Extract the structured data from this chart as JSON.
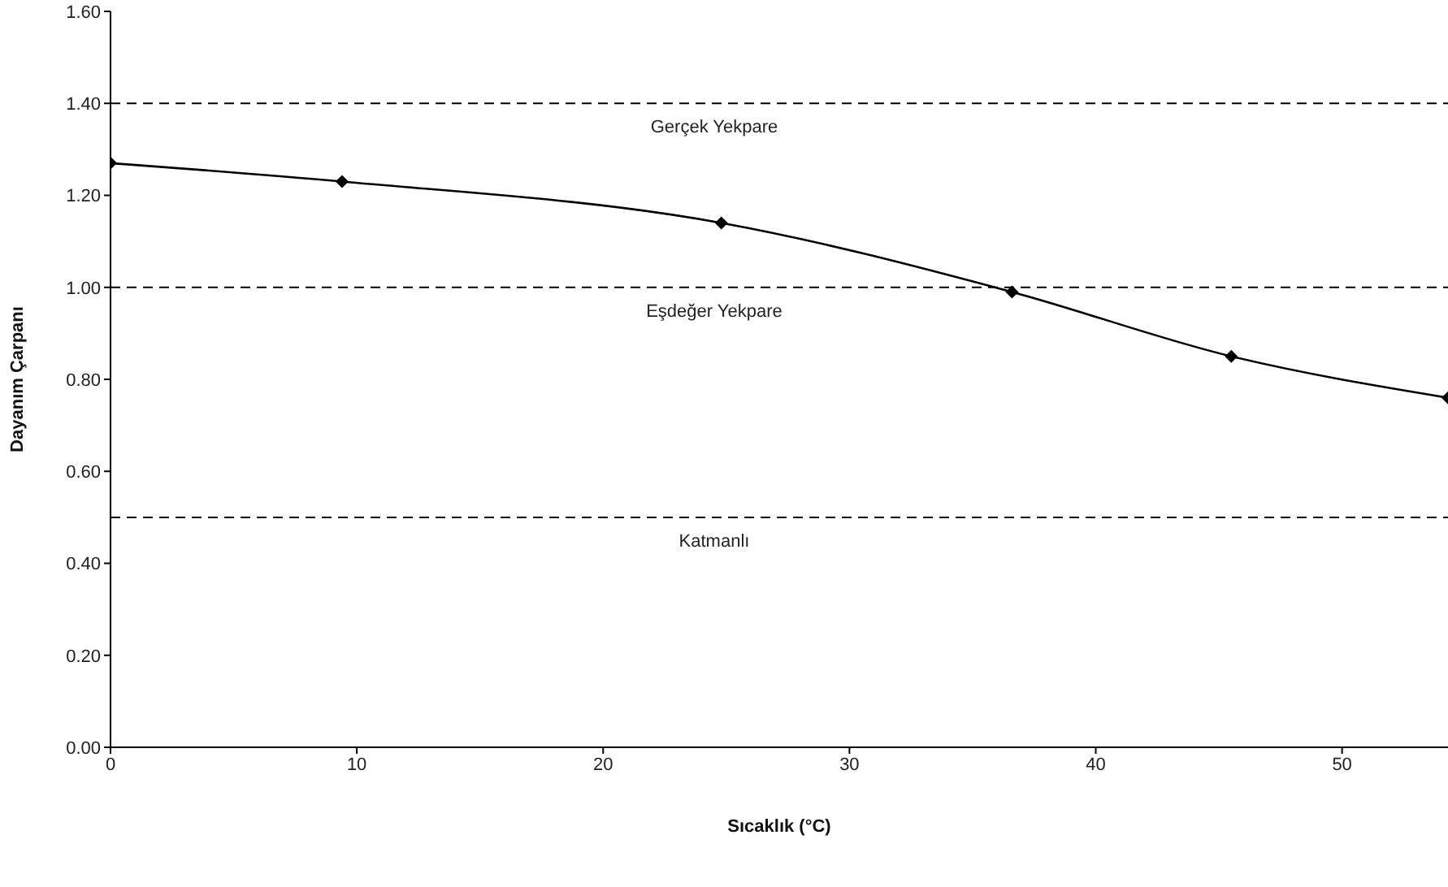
{
  "chart_data": {
    "type": "line",
    "xlabel": "Sıcaklık (°C)",
    "ylabel": "Dayanım Çarpanı",
    "x": [
      0,
      9.4,
      24.8,
      36.6,
      45.5,
      54.3
    ],
    "series": [
      {
        "color": "#000000",
        "values": [
          1.27,
          1.23,
          1.14,
          0.99,
          0.85,
          0.76
        ]
      }
    ],
    "xlim": [
      0,
      54.3
    ],
    "xticks": [
      0,
      10,
      20,
      30,
      40,
      50
    ],
    "ylim": [
      0,
      1.6
    ],
    "yticks": [
      {
        "value": 0,
        "label": "0.00"
      },
      {
        "value": 0.2,
        "label": "0.20"
      },
      {
        "value": 0.4,
        "label": "0.40"
      },
      {
        "value": 0.6,
        "label": "0.60"
      },
      {
        "value": 0.8,
        "label": "0.80"
      },
      {
        "value": 1,
        "label": "1.00"
      },
      {
        "value": 1.2,
        "label": "1.20"
      },
      {
        "value": 1.4,
        "label": "1.40"
      },
      {
        "value": 1.6,
        "label": "1.60"
      }
    ],
    "ref_lines": [
      {
        "axis": "y",
        "value": 1.4,
        "label": "Gerçek Yekpare",
        "color": "#000000",
        "line_style": "dashed"
      },
      {
        "axis": "y",
        "value": 1,
        "label": "Eşdeğer Yekpare",
        "color": "#000000",
        "line_style": "dashed"
      },
      {
        "axis": "y",
        "value": 0.5,
        "label": "Katmanlı",
        "color": "#000000",
        "line_style": "dashed"
      }
    ],
    "marker": "diamond",
    "line_style": "solid",
    "grid": false,
    "legend": false
  }
}
